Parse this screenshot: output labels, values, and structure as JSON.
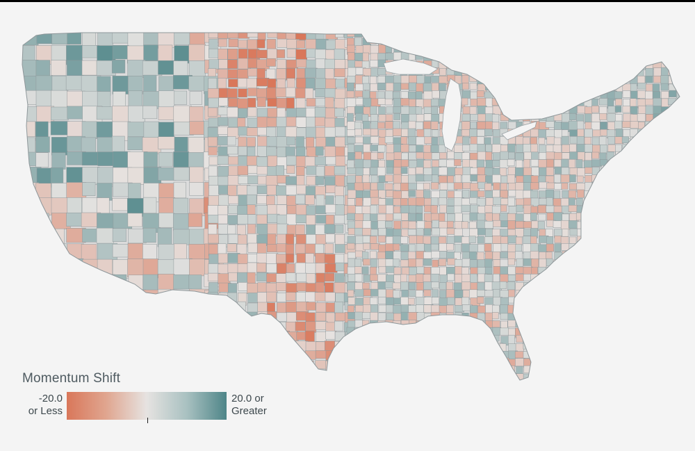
{
  "map": {
    "legend": {
      "title": "Momentum Shift",
      "min_label_line1": "-20.0",
      "min_label_line2": "or Less",
      "max_label_line1": "20.0 or",
      "max_label_line2": "Greater",
      "min_value": -20.0,
      "max_value": 20.0,
      "zero_marker_value": 0,
      "color_low": "#d9775a",
      "color_mid": "#e6e3e1",
      "color_high": "#4e8588"
    }
  }
}
